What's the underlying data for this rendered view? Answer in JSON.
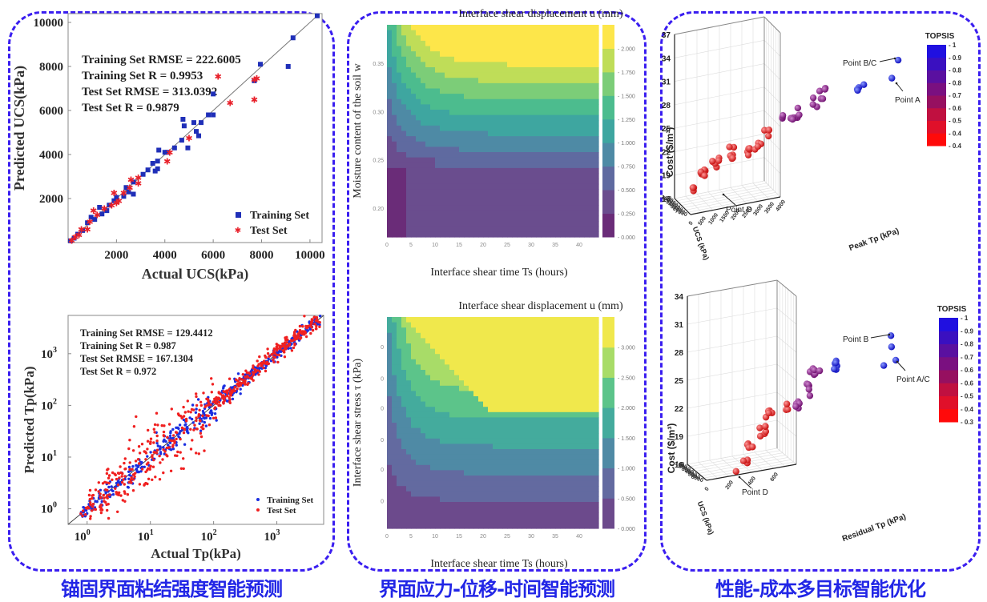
{
  "captions": [
    "锚固界面粘结强度智能预测",
    "界面应力-位移-时间智能预测",
    "性能-成本多目标智能优化"
  ],
  "border_color": "#3a1ef0",
  "caption_color": "#2226e6",
  "chart_data": [
    {
      "id": "ucs-scatter",
      "type": "scatter",
      "xlabel": "Actual UCS(kPa)",
      "ylabel": "Predicted UCS(kPa)",
      "xlim": [
        0,
        10500
      ],
      "ylim": [
        0,
        10400
      ],
      "xticks": [
        2000,
        4000,
        6000,
        8000,
        10000
      ],
      "yticks": [
        2000,
        4000,
        6000,
        8000,
        10000
      ],
      "xtick_labels": [
        "2000",
        "4000",
        "6000",
        "8000",
        "10000"
      ],
      "ytick_labels": [
        "2000",
        "4000",
        "6000",
        "8000",
        "10000"
      ],
      "annotations": [
        "Training Set RMSE = 222.6005",
        "Training Set R = 0.9953",
        "Test Set RMSE = 313.0392",
        "Test Set R = 0.9879"
      ],
      "legend": {
        "position": "bottom-right",
        "entries": [
          "Training Set",
          "Test Set"
        ]
      },
      "series": [
        {
          "name": "Training Set",
          "color": "#1f2fb8",
          "marker": "square",
          "points": [
            [
              100,
              80
            ],
            [
              250,
              200
            ],
            [
              400,
              380
            ],
            [
              600,
              550
            ],
            [
              800,
              900
            ],
            [
              950,
              1150
            ],
            [
              1100,
              1050
            ],
            [
              1300,
              1600
            ],
            [
              1400,
              1300
            ],
            [
              1600,
              1450
            ],
            [
              1700,
              1700
            ],
            [
              1900,
              1900
            ],
            [
              2000,
              2050
            ],
            [
              2300,
              2100
            ],
            [
              2400,
              2500
            ],
            [
              2500,
              2300
            ],
            [
              2700,
              2200
            ],
            [
              2700,
              2750
            ],
            [
              3100,
              3100
            ],
            [
              3300,
              3300
            ],
            [
              3500,
              3600
            ],
            [
              3600,
              3250
            ],
            [
              3700,
              3700
            ],
            [
              3750,
              4200
            ],
            [
              3700,
              3350
            ],
            [
              4000,
              4100
            ],
            [
              4100,
              4100
            ],
            [
              4400,
              4300
            ],
            [
              4700,
              4650
            ],
            [
              4750,
              5600
            ],
            [
              4800,
              5300
            ],
            [
              4950,
              4300
            ],
            [
              5200,
              5450
            ],
            [
              5300,
              5050
            ],
            [
              5400,
              4850
            ],
            [
              5500,
              5450
            ],
            [
              5800,
              5800
            ],
            [
              6000,
              5800
            ],
            [
              6000,
              6750
            ],
            [
              7700,
              7350
            ],
            [
              7950,
              8100
            ],
            [
              9100,
              8000
            ],
            [
              9300,
              9300
            ],
            [
              10300,
              10300
            ]
          ]
        },
        {
          "name": "Test Set",
          "color": "#e8202a",
          "marker": "star",
          "points": [
            [
              150,
              100
            ],
            [
              300,
              250
            ],
            [
              450,
              350
            ],
            [
              550,
              600
            ],
            [
              800,
              600
            ],
            [
              900,
              950
            ],
            [
              1050,
              1450
            ],
            [
              1200,
              1250
            ],
            [
              1500,
              1550
            ],
            [
              1800,
              1700
            ],
            [
              1900,
              2250
            ],
            [
              2000,
              1800
            ],
            [
              2100,
              1900
            ],
            [
              2300,
              2250
            ],
            [
              2550,
              2500
            ],
            [
              2600,
              2850
            ],
            [
              2900,
              2700
            ],
            [
              2900,
              2950
            ],
            [
              4100,
              3700
            ],
            [
              4200,
              4100
            ],
            [
              5000,
              4750
            ],
            [
              6200,
              7550
            ],
            [
              6700,
              6350
            ],
            [
              7700,
              6500
            ],
            [
              7700,
              7400
            ],
            [
              7800,
              7450
            ]
          ]
        }
      ]
    },
    {
      "id": "tp-scatter",
      "type": "scatter",
      "scale": "log",
      "xlabel": "Actual Tp(kPa)",
      "ylabel": "Predicted Tp(kPa)",
      "xlim": [
        0.5,
        5500
      ],
      "ylim": [
        0.5,
        5500
      ],
      "xtick_labels": [
        "10^0",
        "10^1",
        "10^2",
        "10^3"
      ],
      "ytick_labels": [
        "10^0",
        "10^1",
        "10^2",
        "10^3"
      ],
      "annotations": [
        "Training Set RMSE = 129.4412",
        "Training Set R = 0.987",
        "Test Set RMSE = 167.1304",
        "Test Set R = 0.972"
      ],
      "legend": {
        "position": "bottom-right",
        "entries": [
          "Training Set",
          "Test Set"
        ]
      },
      "series": [
        {
          "name": "Training Set",
          "color": "#1a2ee0",
          "marker": "dot",
          "description": "dense cloud along y=x from ~0.8 to ~5000 kPa"
        },
        {
          "name": "Test Set",
          "color": "#f02020",
          "marker": "dot",
          "description": "dense cloud along y=x with larger scatter between 1 and 300 kPa"
        }
      ]
    },
    {
      "id": "moisture-contour",
      "type": "heatmap",
      "title": "Interface shear displacement u (mm)",
      "xlabel": "Interface shear time Ts (hours)",
      "ylabel": "Moisture content of the soil w",
      "xlim": [
        0,
        44
      ],
      "ylim": [
        0.17,
        0.39
      ],
      "xtick_labels": [
        "0",
        "5",
        "10",
        "15",
        "20",
        "25",
        "30",
        "35",
        "40"
      ],
      "ytick_labels": [
        "0.20",
        "0.25",
        "0.30",
        "0.35"
      ],
      "colorbar_ticks": [
        "0.000",
        "0.250",
        "0.500",
        "0.750",
        "1.000",
        "1.250",
        "1.500",
        "1.750",
        "2.000"
      ],
      "colorbar_colors": [
        "#6a2c78",
        "#6a4d8e",
        "#5f6aa0",
        "#4e8aa5",
        "#3ea6a0",
        "#4cbc8e",
        "#7ccd78",
        "#bfdd58",
        "#fde64a"
      ],
      "contour_labels": [
        "0.250",
        "0.500",
        "0.750",
        "1.000",
        "1.250",
        "1.500",
        "1.750",
        "2.000"
      ]
    },
    {
      "id": "stress-contour",
      "type": "heatmap",
      "title": "Interface shear displacement u (mm)",
      "xlabel": "Interface shear time Ts (hours)",
      "ylabel": "Interface shear stress τ (kPa)",
      "xlim": [
        0,
        44
      ],
      "xtick_labels": [
        "0",
        "5",
        "10",
        "15",
        "20",
        "25",
        "30",
        "35",
        "40"
      ],
      "colorbar_ticks": [
        "0.000",
        "0.500",
        "1.000",
        "1.500",
        "2.000",
        "2.500",
        "3.000"
      ],
      "colorbar_colors": [
        "#6c4a8c",
        "#636aa0",
        "#4f8aa5",
        "#44ab9d",
        "#5cc48a",
        "#a8dc68",
        "#f0e84c"
      ],
      "contour_labels": [
        "0.500",
        "1.000",
        "1.500",
        "2.000",
        "2.500",
        "3.000"
      ]
    },
    {
      "id": "peak-3d",
      "type": "scatter",
      "projection": "3d",
      "xlabel": "Peak Tp (kPa)",
      "ylabel": "UCS (kPa)",
      "zlabel": "Cost ($/m³)",
      "x_tick_labels": [
        "0",
        "500",
        "1000",
        "1500",
        "2000",
        "2500",
        "3000",
        "3500",
        "4000"
      ],
      "y_tick_labels": [
        "0",
        "1000",
        "2000",
        "3000",
        "4000",
        "5000",
        "6000",
        "7000"
      ],
      "z_tick_labels": [
        "16",
        "19",
        "22",
        "25",
        "28",
        "31",
        "34",
        "37"
      ],
      "zlim": [
        16,
        37
      ],
      "colorbar_title": "TOPSIS",
      "colorbar_ticks": [
        "0.4",
        "0.4",
        "0.5",
        "0.6",
        "0.7",
        "0.8",
        "0.8",
        "0.9",
        "1"
      ],
      "annotations": [
        "Point B/C",
        "Point A",
        "Point D"
      ]
    },
    {
      "id": "residual-3d",
      "type": "scatter",
      "projection": "3d",
      "xlabel": "Residual Tp (kPa)",
      "ylabel": "UCS (kPa)",
      "zlabel": "Cost ($/m³)",
      "x_tick_labels": [
        "0",
        "200",
        "400",
        "600"
      ],
      "y_tick_labels": [
        "0",
        "1000",
        "2000",
        "3000",
        "4000",
        "5000",
        "6000"
      ],
      "z_tick_labels": [
        "16",
        "19",
        "22",
        "25",
        "28",
        "31",
        "34"
      ],
      "zlim": [
        16,
        34
      ],
      "colorbar_title": "TOPSIS",
      "colorbar_ticks": [
        "0.3",
        "0.4",
        "0.5",
        "0.6",
        "0.6",
        "0.7",
        "0.8",
        "0.9",
        "1"
      ],
      "annotations": [
        "Point B",
        "Point A/C",
        "Point D"
      ]
    }
  ]
}
